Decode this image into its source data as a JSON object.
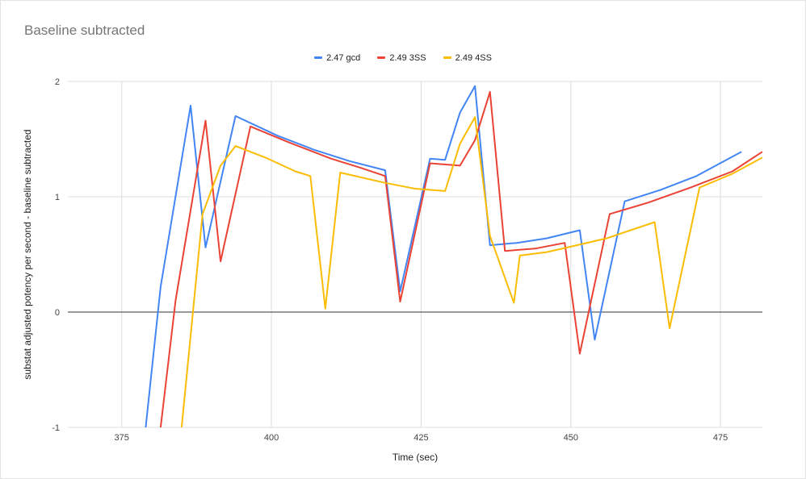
{
  "chart_data": {
    "type": "line",
    "title": "Baseline subtracted",
    "xlabel": "Time (sec)",
    "ylabel": "substat adjusted potency per second - baseline subtracted",
    "xlim": [
      366,
      482
    ],
    "ylim": [
      -1,
      2
    ],
    "xticks": [
      375,
      400,
      425,
      450,
      475
    ],
    "yticks": [
      -1,
      0,
      1,
      2
    ],
    "legend_position": "top-center",
    "grid": true,
    "series": [
      {
        "name": "2.47 gcd",
        "color": "#4285f4",
        "points": [
          [
            379,
            -1.0
          ],
          [
            381.5,
            0.22
          ],
          [
            386.5,
            1.79
          ],
          [
            389,
            0.56
          ],
          [
            394,
            1.7
          ],
          [
            401,
            1.53
          ],
          [
            407,
            1.41
          ],
          [
            413,
            1.31
          ],
          [
            419,
            1.23
          ],
          [
            421.5,
            0.18
          ],
          [
            426.5,
            1.33
          ],
          [
            429,
            1.32
          ],
          [
            431.5,
            1.73
          ],
          [
            434,
            1.96
          ],
          [
            436.5,
            0.58
          ],
          [
            441,
            0.6
          ],
          [
            446,
            0.64
          ],
          [
            451.5,
            0.71
          ],
          [
            454,
            -0.24
          ],
          [
            459,
            0.96
          ],
          [
            465,
            1.06
          ],
          [
            471,
            1.18
          ],
          [
            478.5,
            1.39
          ]
        ]
      },
      {
        "name": "2.49 3SS",
        "color": "#ea4335",
        "points": [
          [
            381.5,
            -1.0
          ],
          [
            384,
            0.1
          ],
          [
            389,
            1.66
          ],
          [
            391.5,
            0.44
          ],
          [
            396.5,
            1.61
          ],
          [
            403,
            1.47
          ],
          [
            410,
            1.33
          ],
          [
            415,
            1.25
          ],
          [
            419,
            1.18
          ],
          [
            421.5,
            0.09
          ],
          [
            426.5,
            1.29
          ],
          [
            431.5,
            1.27
          ],
          [
            434,
            1.49
          ],
          [
            436.5,
            1.91
          ],
          [
            439,
            0.53
          ],
          [
            444,
            0.55
          ],
          [
            449,
            0.6
          ],
          [
            451.5,
            -0.36
          ],
          [
            456.5,
            0.85
          ],
          [
            463,
            0.95
          ],
          [
            470,
            1.08
          ],
          [
            477,
            1.22
          ],
          [
            482,
            1.39
          ]
        ]
      },
      {
        "name": "2.49 4SS",
        "color": "#fbbc04",
        "points": [
          [
            385,
            -1.0
          ],
          [
            388.5,
            0.85
          ],
          [
            391.5,
            1.27
          ],
          [
            394,
            1.44
          ],
          [
            399,
            1.34
          ],
          [
            404,
            1.22
          ],
          [
            406.5,
            1.18
          ],
          [
            409,
            0.03
          ],
          [
            411.5,
            1.21
          ],
          [
            419,
            1.12
          ],
          [
            424,
            1.07
          ],
          [
            429,
            1.05
          ],
          [
            431.5,
            1.46
          ],
          [
            434,
            1.69
          ],
          [
            436.5,
            0.66
          ],
          [
            440.5,
            0.08
          ],
          [
            441.5,
            0.49
          ],
          [
            446,
            0.52
          ],
          [
            451,
            0.58
          ],
          [
            456,
            0.64
          ],
          [
            464,
            0.78
          ],
          [
            466.5,
            -0.14
          ],
          [
            471.5,
            1.08
          ],
          [
            477,
            1.2
          ],
          [
            482,
            1.34
          ]
        ]
      }
    ]
  }
}
